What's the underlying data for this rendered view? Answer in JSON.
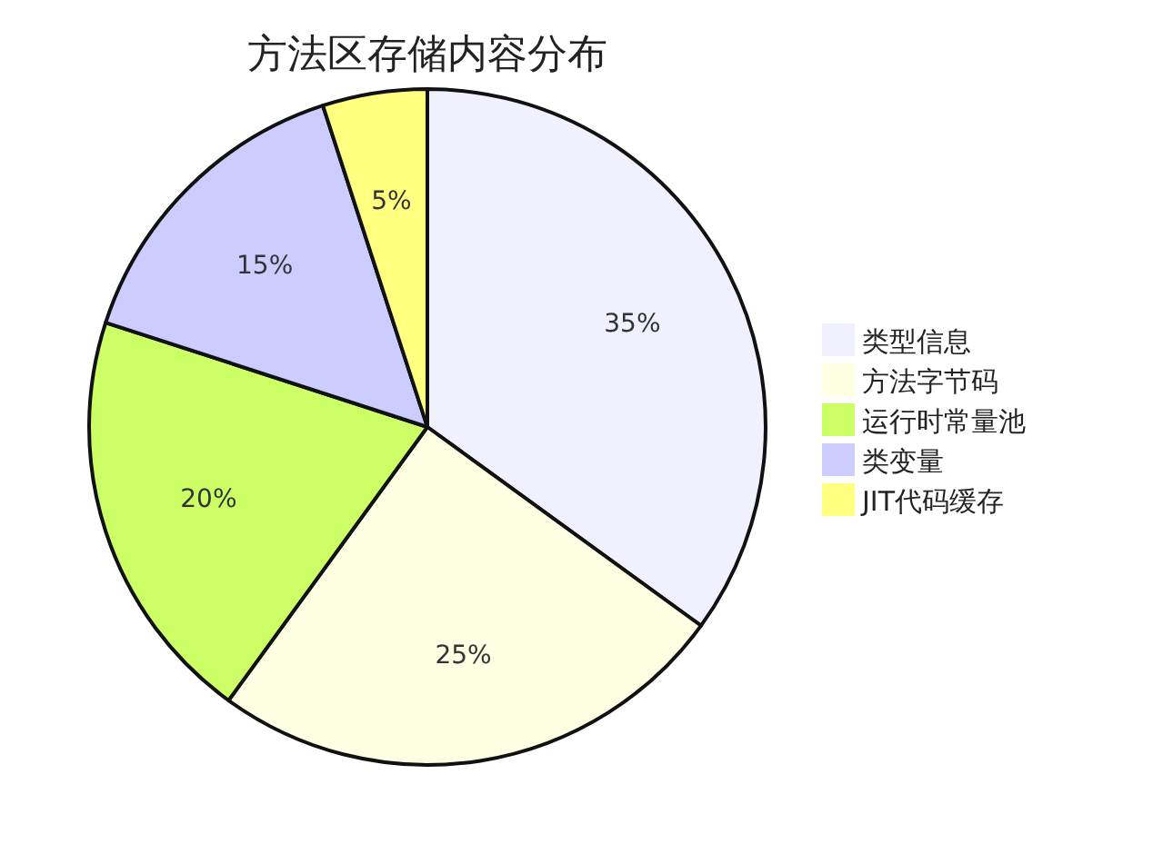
{
  "chart_data": {
    "type": "pie",
    "title": "方法区存储内容分布",
    "categories": [
      "类型信息",
      "方法字节码",
      "运行时常量池",
      "类变量",
      "JIT代码缓存"
    ],
    "values": [
      35,
      25,
      20,
      15,
      5
    ],
    "colors": [
      "#f0f0ff",
      "#ffffe3",
      "#ccff66",
      "#ccccff",
      "#ffff80"
    ],
    "value_labels": [
      "35%",
      "25%",
      "20%",
      "15%",
      "5%"
    ],
    "legend": "right"
  }
}
